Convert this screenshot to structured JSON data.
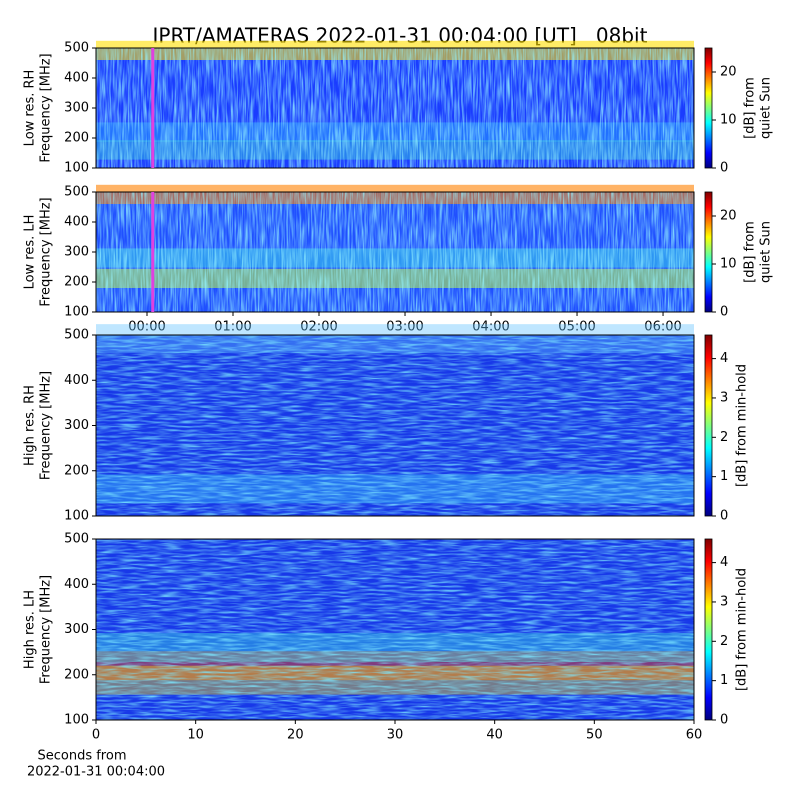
{
  "title": "IPRT/AMATERAS 2022-01-31 00:04:00 [UT]   08bit",
  "chart_data": [
    {
      "type": "heatmap",
      "ylabel": [
        "Low res. RH",
        "Frequency [MHz]"
      ],
      "ylim": [
        100,
        500
      ],
      "yticks": [
        100,
        200,
        300,
        400,
        500
      ],
      "xlim": [
        -0.593,
        6.36
      ],
      "marker_x": 0.067,
      "marker_color": "#e040e0",
      "colorbar_label": [
        "[dB] from",
        "quiet Sun"
      ],
      "clim": [
        0,
        25
      ],
      "cticks": [
        0,
        10,
        20
      ]
    },
    {
      "type": "heatmap",
      "ylabel": [
        "Low res. LH",
        "Frequency [MHz]"
      ],
      "ylim": [
        100,
        500
      ],
      "yticks": [
        100,
        200,
        300,
        400,
        500
      ],
      "xlim": [
        -0.593,
        6.36
      ],
      "marker_x": 0.067,
      "marker_color": "#e040e0",
      "xticks": [
        {
          "value": 0,
          "label": "00:00"
        },
        {
          "value": 1,
          "label": "01:00"
        },
        {
          "value": 2,
          "label": "02:00"
        },
        {
          "value": 3,
          "label": "03:00"
        },
        {
          "value": 4,
          "label": "04:00"
        },
        {
          "value": 5,
          "label": "05:00"
        },
        {
          "value": 6,
          "label": "06:00"
        }
      ],
      "colorbar_label": [
        "[dB] from",
        "quiet Sun"
      ],
      "clim": [
        0,
        25
      ],
      "cticks": [
        0,
        10,
        20
      ]
    },
    {
      "type": "heatmap",
      "ylabel": [
        "High res. RH",
        "Frequency [MHz]"
      ],
      "ylim": [
        100,
        500
      ],
      "yticks": [
        100,
        200,
        300,
        400,
        500
      ],
      "xlim": [
        0,
        60
      ],
      "colorbar_label": [
        "[dB] from min-hold"
      ],
      "clim": [
        0,
        4.6
      ],
      "cticks": [
        0,
        1,
        2,
        3,
        4
      ]
    },
    {
      "type": "heatmap",
      "ylabel": [
        "High res. LH",
        "Frequency [MHz]"
      ],
      "ylim": [
        100,
        500
      ],
      "yticks": [
        100,
        200,
        300,
        400,
        500
      ],
      "xlim": [
        0,
        60
      ],
      "xticks": [
        0,
        10,
        20,
        30,
        40,
        50,
        60
      ],
      "xlabel": [
        "Seconds from",
        "2022-01-31 00:04:00"
      ],
      "colorbar_label": [
        "[dB] from min-hold"
      ],
      "clim": [
        0,
        4.6
      ],
      "cticks": [
        0,
        1,
        2,
        3,
        4
      ]
    }
  ]
}
